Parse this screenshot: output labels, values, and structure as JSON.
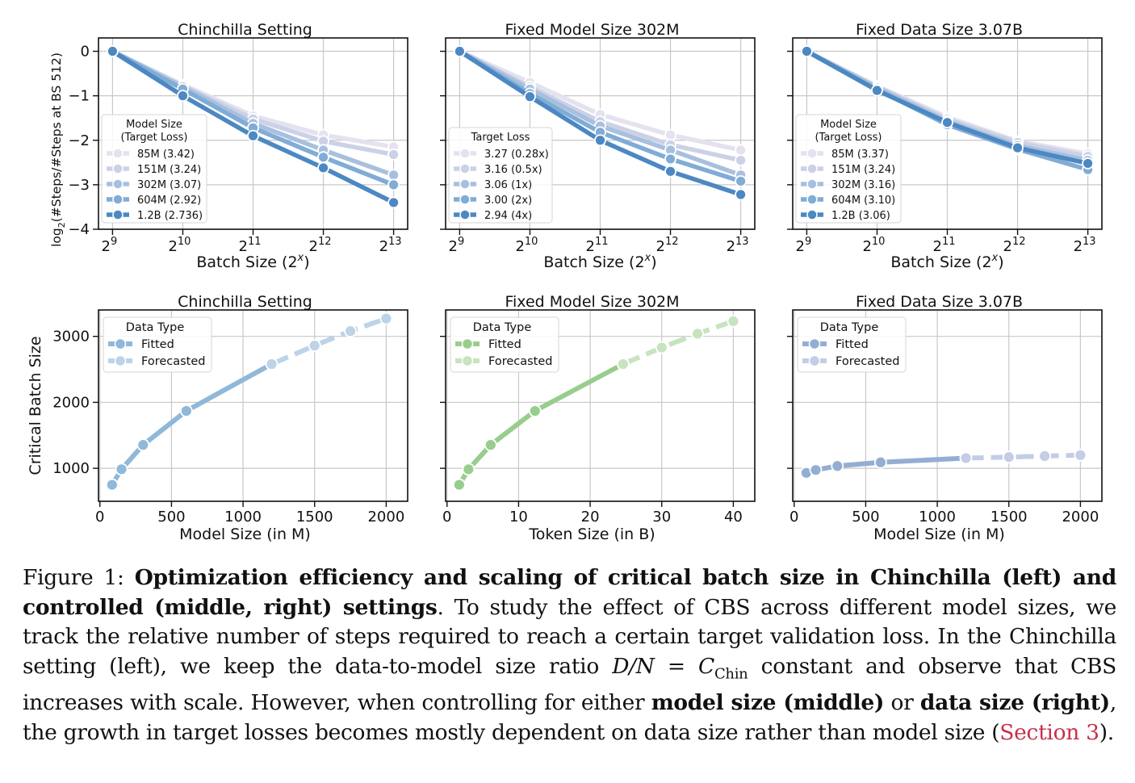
{
  "chart_data": [
    {
      "type": "line",
      "title": "Chinchilla Setting",
      "xlabel": "Batch Size (2^x)",
      "ylabel": "log2(#Steps/#Steps at BS 512)",
      "x_tick_base": "2",
      "x_tick_exponents": [
        "9",
        "10",
        "11",
        "12",
        "13"
      ],
      "x": [
        9,
        10,
        11,
        12,
        13
      ],
      "ylim": [
        -4,
        0.3
      ],
      "y_ticks": [
        "0",
        "−1",
        "−2",
        "−3",
        "−4"
      ],
      "legend": {
        "title_lines": [
          "Model Size",
          "(Target Loss)"
        ],
        "placement": "lower-left"
      },
      "series": [
        {
          "name": "85M (3.42)",
          "color": "#e4e2ef",
          "values": [
            0,
            -0.75,
            -1.45,
            -1.88,
            -2.15
          ]
        },
        {
          "name": "151M (3.24)",
          "color": "#cbd1e6",
          "values": [
            0,
            -0.78,
            -1.52,
            -2.02,
            -2.32
          ]
        },
        {
          "name": "302M (3.07)",
          "color": "#a8c0df",
          "values": [
            0,
            -0.8,
            -1.62,
            -2.22,
            -2.78
          ]
        },
        {
          "name": "604M (2.92)",
          "color": "#80acd6",
          "values": [
            0,
            -0.85,
            -1.72,
            -2.38,
            -3.0
          ]
        },
        {
          "name": "1.2B (2.736)",
          "color": "#4c88c2",
          "values": [
            0,
            -1.0,
            -1.9,
            -2.62,
            -3.4
          ]
        }
      ]
    },
    {
      "type": "line",
      "title": "Fixed Model Size 302M",
      "xlabel": "Batch Size (2^x)",
      "ylabel": "",
      "x_tick_base": "2",
      "x_tick_exponents": [
        "9",
        "10",
        "11",
        "12",
        "13"
      ],
      "x": [
        9,
        10,
        11,
        12,
        13
      ],
      "ylim": [
        -4,
        0.3
      ],
      "legend": {
        "title_lines": [
          "Target Loss"
        ],
        "placement": "lower-left"
      },
      "series": [
        {
          "name": "3.27 (0.28x)",
          "color": "#e4e2ef",
          "values": [
            0,
            -0.7,
            -1.42,
            -1.88,
            -2.22
          ]
        },
        {
          "name": "3.16 (0.5x)",
          "color": "#cbd1e6",
          "values": [
            0,
            -0.8,
            -1.58,
            -2.1,
            -2.45
          ]
        },
        {
          "name": "3.06 (1x)",
          "color": "#a8c0df",
          "values": [
            0,
            -0.85,
            -1.68,
            -2.22,
            -2.78
          ]
        },
        {
          "name": "3.00 (2x)",
          "color": "#80acd6",
          "values": [
            0,
            -0.95,
            -1.82,
            -2.42,
            -2.92
          ]
        },
        {
          "name": "2.94 (4x)",
          "color": "#4c88c2",
          "values": [
            0,
            -1.02,
            -2.0,
            -2.7,
            -3.22
          ]
        }
      ]
    },
    {
      "type": "line",
      "title": "Fixed Data Size 3.07B",
      "xlabel": "Batch Size (2^x)",
      "ylabel": "",
      "x_tick_base": "2",
      "x_tick_exponents": [
        "9",
        "10",
        "11",
        "12",
        "13"
      ],
      "x": [
        9,
        10,
        11,
        12,
        13
      ],
      "ylim": [
        -4,
        0.3
      ],
      "legend": {
        "title_lines": [
          "Model Size",
          "(Target Loss)"
        ],
        "placement": "lower-left"
      },
      "series": [
        {
          "name": "85M (3.37)",
          "color": "#e4e2ef",
          "values": [
            0,
            -0.78,
            -1.48,
            -2.02,
            -2.3
          ]
        },
        {
          "name": "151M (3.24)",
          "color": "#cbd1e6",
          "values": [
            0,
            -0.8,
            -1.52,
            -2.05,
            -2.36
          ]
        },
        {
          "name": "302M (3.16)",
          "color": "#a8c0df",
          "values": [
            0,
            -0.82,
            -1.57,
            -2.12,
            -2.45
          ]
        },
        {
          "name": "604M (3.10)",
          "color": "#80acd6",
          "values": [
            0,
            -0.86,
            -1.65,
            -2.2,
            -2.66
          ]
        },
        {
          "name": "1.2B (3.06)",
          "color": "#4c88c2",
          "values": [
            0,
            -0.88,
            -1.6,
            -2.17,
            -2.52
          ]
        }
      ]
    },
    {
      "type": "line",
      "title": "Chinchilla Setting",
      "xlabel": "Model Size (in M)",
      "ylabel": "Critical Batch Size",
      "xlim": [
        0,
        2000
      ],
      "ylim": [
        500,
        3400
      ],
      "x_ticks": [
        "0",
        "500",
        "1000",
        "1500",
        "2000"
      ],
      "y_ticks": [
        "1000",
        "2000",
        "3000"
      ],
      "legend": {
        "title": "Data Type",
        "placement": "upper-left"
      },
      "series": [
        {
          "name": "Fitted",
          "color": "#8fb8d9",
          "points": [
            [
              85,
              750
            ],
            [
              151,
              985
            ],
            [
              302,
              1355
            ],
            [
              604,
              1870
            ],
            [
              1200,
              2580
            ]
          ]
        },
        {
          "name": "Forecasted",
          "color": "#bcd3e8",
          "points": [
            [
              1200,
              2580
            ],
            [
              1500,
              2860
            ],
            [
              1750,
              3080
            ],
            [
              2000,
              3270
            ]
          ]
        }
      ]
    },
    {
      "type": "line",
      "title": "Fixed Model Size 302M",
      "xlabel": "Token Size (in B)",
      "ylabel": "",
      "xlim": [
        0,
        40
      ],
      "ylim": [
        500,
        3400
      ],
      "x_ticks": [
        "0",
        "10",
        "20",
        "30",
        "40"
      ],
      "legend": {
        "title": "Data Type",
        "placement": "upper-left"
      },
      "series": [
        {
          "name": "Fitted",
          "color": "#99cd8e",
          "points": [
            [
              1.7,
              750
            ],
            [
              3.0,
              985
            ],
            [
              6.1,
              1355
            ],
            [
              12.3,
              1870
            ],
            [
              24.6,
              2580
            ]
          ]
        },
        {
          "name": "Forecasted",
          "color": "#c7e3bf",
          "points": [
            [
              24.6,
              2580
            ],
            [
              30,
              2830
            ],
            [
              35,
              3040
            ],
            [
              40,
              3230
            ]
          ]
        }
      ]
    },
    {
      "type": "line",
      "title": "Fixed Data Size 3.07B",
      "xlabel": "Model Size (in M)",
      "ylabel": "",
      "xlim": [
        0,
        2000
      ],
      "ylim": [
        500,
        3400
      ],
      "x_ticks": [
        "0",
        "500",
        "1000",
        "1500",
        "2000"
      ],
      "legend": {
        "title": "Data Type",
        "placement": "upper-left"
      },
      "series": [
        {
          "name": "Fitted",
          "color": "#94aed3",
          "points": [
            [
              85,
              930
            ],
            [
              151,
              975
            ],
            [
              302,
              1035
            ],
            [
              604,
              1090
            ],
            [
              1200,
              1155
            ]
          ]
        },
        {
          "name": "Forecasted",
          "color": "#c3cde6",
          "points": [
            [
              1200,
              1155
            ],
            [
              1500,
              1170
            ],
            [
              1750,
              1185
            ],
            [
              2000,
              1200
            ]
          ]
        }
      ]
    }
  ],
  "caption": {
    "prefix": "Figure 1: ",
    "bold_title": "Optimization efficiency and scaling of critical batch size in Chinchilla (left) and controlled (middle, right) settings",
    "part1": ". To study the effect of CBS across different model sizes, we track the relative number of steps required to reach a certain target validation loss. In the Chinchilla setting (left), we keep the data-to-model size ratio ",
    "math": "D/N = C",
    "math_sub": "Chin",
    "part2": " constant and observe that CBS increases with scale. However, when controlling for either ",
    "bold_model": "model size (middle)",
    "part3": " or ",
    "bold_data": "data size (right)",
    "part4": ", the growth in target losses becomes mostly dependent on data size rather than model size (",
    "ref": "Section 3",
    "part5": ")."
  }
}
